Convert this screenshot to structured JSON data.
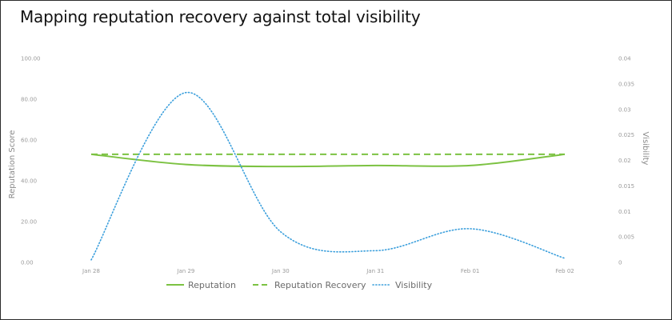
{
  "page": {
    "title": "Mapping reputation recovery against total visibility"
  },
  "colors": {
    "reputation": "#7cc242",
    "visibility": "#3b9fdc"
  },
  "chart_data": {
    "type": "line",
    "title": "Mapping reputation recovery against total visibility",
    "categories": [
      "Jan 28",
      "Jan 29",
      "Jan 30",
      "Jan 31",
      "Feb 01",
      "Feb 02"
    ],
    "y_left": {
      "label": "Reputation Score",
      "range": [
        0,
        100
      ],
      "ticks": [
        0,
        20,
        40,
        60,
        80,
        100
      ],
      "tick_labels": [
        "0.00",
        "20.00",
        "40.00",
        "60.00",
        "80.00",
        "100.00"
      ]
    },
    "y_right": {
      "label": "Visibility",
      "range": [
        0,
        0.04
      ],
      "ticks": [
        0,
        0.005,
        0.01,
        0.015,
        0.02,
        0.025,
        0.03,
        0.035,
        0.04
      ],
      "tick_labels": [
        "0",
        "0.005",
        "0.01",
        "0.015",
        "0.02",
        "0.025",
        "0.03",
        "0.035",
        "0.04"
      ]
    },
    "series": [
      {
        "name": "Reputation",
        "axis": "left",
        "style": "solid",
        "values": [
          53,
          48,
          47,
          47.5,
          47.5,
          53
        ]
      },
      {
        "name": "Reputation Recovery",
        "axis": "left",
        "style": "dashed",
        "values": [
          53,
          53,
          53,
          53,
          53,
          53
        ]
      },
      {
        "name": "Visibility",
        "axis": "right",
        "style": "dotted",
        "values": [
          0.0005,
          0.0333,
          0.006,
          0.0023,
          0.0066,
          0.0008
        ]
      }
    ],
    "legend": "bottom-center",
    "grid": false
  }
}
